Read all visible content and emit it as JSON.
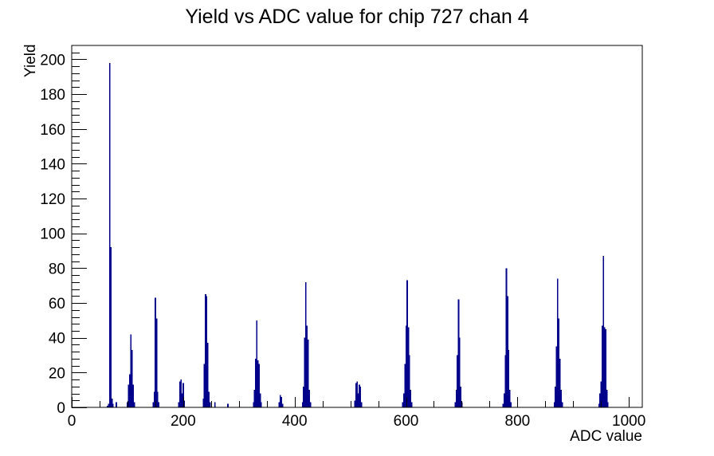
{
  "page": {
    "background": "#ffffff"
  },
  "chart_data": {
    "type": "bar",
    "title": "Yield vs ADC value for chip 727 chan 4",
    "xlabel": "ADC value",
    "ylabel": "Yield",
    "xlim": [
      0,
      1024
    ],
    "ylim": [
      0,
      208
    ],
    "x_major_ticks": [
      0,
      200,
      400,
      600,
      800,
      1000
    ],
    "x_minor_step": 50,
    "y_major_ticks": [
      0,
      20,
      40,
      60,
      80,
      100,
      120,
      140,
      160,
      180,
      200
    ],
    "y_minor_step": 4,
    "grid": false,
    "legend": "none",
    "bin_width": 2,
    "colors": {
      "bar": "#00008b",
      "axis": "#000000",
      "text": "#000000"
    },
    "bars": [
      [
        64,
        1
      ],
      [
        66,
        2
      ],
      [
        68,
        198
      ],
      [
        70,
        92
      ],
      [
        72,
        5
      ],
      [
        74,
        2
      ],
      [
        80,
        3
      ],
      [
        100,
        3
      ],
      [
        102,
        13
      ],
      [
        104,
        19
      ],
      [
        106,
        42
      ],
      [
        108,
        33
      ],
      [
        110,
        13
      ],
      [
        112,
        3
      ],
      [
        146,
        3
      ],
      [
        148,
        9
      ],
      [
        150,
        63
      ],
      [
        152,
        51
      ],
      [
        154,
        9
      ],
      [
        156,
        3
      ],
      [
        192,
        3
      ],
      [
        194,
        15
      ],
      [
        196,
        16
      ],
      [
        198,
        8
      ],
      [
        200,
        14
      ],
      [
        202,
        4
      ],
      [
        236,
        5
      ],
      [
        238,
        25
      ],
      [
        240,
        65
      ],
      [
        242,
        64
      ],
      [
        244,
        37
      ],
      [
        246,
        9
      ],
      [
        248,
        3
      ],
      [
        257,
        3
      ],
      [
        280,
        2
      ],
      [
        326,
        3
      ],
      [
        328,
        10
      ],
      [
        330,
        28
      ],
      [
        332,
        50
      ],
      [
        334,
        27
      ],
      [
        336,
        25
      ],
      [
        338,
        8
      ],
      [
        340,
        3
      ],
      [
        372,
        3
      ],
      [
        374,
        7
      ],
      [
        376,
        6
      ],
      [
        378,
        2
      ],
      [
        414,
        3
      ],
      [
        416,
        12
      ],
      [
        418,
        40
      ],
      [
        420,
        72
      ],
      [
        422,
        47
      ],
      [
        424,
        39
      ],
      [
        426,
        10
      ],
      [
        428,
        3
      ],
      [
        508,
        4
      ],
      [
        510,
        14
      ],
      [
        512,
        15
      ],
      [
        514,
        8
      ],
      [
        516,
        13
      ],
      [
        518,
        12
      ],
      [
        520,
        3
      ],
      [
        594,
        3
      ],
      [
        596,
        8
      ],
      [
        598,
        25
      ],
      [
        600,
        47
      ],
      [
        602,
        73
      ],
      [
        604,
        46
      ],
      [
        606,
        30
      ],
      [
        608,
        10
      ],
      [
        610,
        3
      ],
      [
        688,
        3
      ],
      [
        690,
        10
      ],
      [
        692,
        30
      ],
      [
        694,
        62
      ],
      [
        696,
        40
      ],
      [
        698,
        12
      ],
      [
        700,
        3
      ],
      [
        774,
        2
      ],
      [
        776,
        8
      ],
      [
        778,
        30
      ],
      [
        780,
        80
      ],
      [
        782,
        64
      ],
      [
        784,
        33
      ],
      [
        786,
        10
      ],
      [
        788,
        3
      ],
      [
        866,
        3
      ],
      [
        868,
        12
      ],
      [
        870,
        35
      ],
      [
        872,
        74
      ],
      [
        874,
        51
      ],
      [
        876,
        28
      ],
      [
        878,
        10
      ],
      [
        880,
        3
      ],
      [
        946,
        2
      ],
      [
        948,
        8
      ],
      [
        950,
        15
      ],
      [
        952,
        47
      ],
      [
        954,
        87
      ],
      [
        956,
        46
      ],
      [
        958,
        45
      ],
      [
        960,
        10
      ],
      [
        962,
        3
      ]
    ]
  }
}
